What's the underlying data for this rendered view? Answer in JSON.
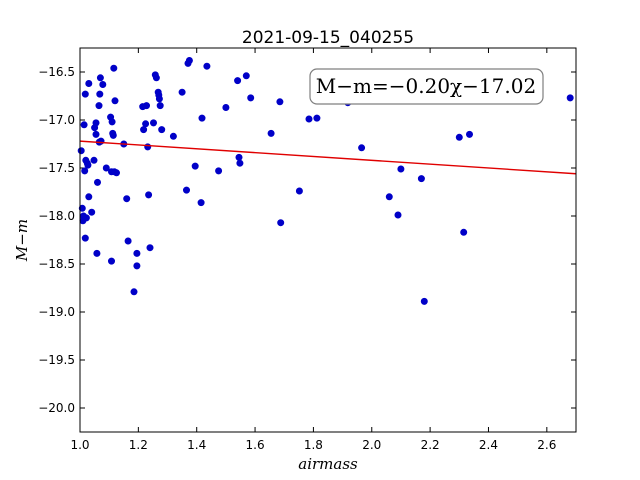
{
  "chart_data": {
    "type": "scatter",
    "title": "2021-09-15_040255",
    "xlabel": "airmass",
    "ylabel": "M−m",
    "xlim": [
      1.0,
      2.7
    ],
    "ylim": [
      -20.25,
      -16.25
    ],
    "y_inverted": true,
    "grid": false,
    "xticks": [
      1.0,
      1.2,
      1.4,
      1.6,
      1.8,
      2.0,
      2.2,
      2.4,
      2.6
    ],
    "xtick_labels": [
      "1.0",
      "1.2",
      "1.4",
      "1.6",
      "1.8",
      "2.0",
      "2.2",
      "2.4",
      "2.6"
    ],
    "yticks": [
      -16.5,
      -17.0,
      -17.5,
      -18.0,
      -18.5,
      -19.0,
      -19.5,
      -20.0
    ],
    "ytick_labels": [
      "−16.5",
      "−17.0",
      "−17.5",
      "−18.0",
      "−18.5",
      "−19.0",
      "−19.5",
      "−20.0"
    ],
    "annotation": "M−m=−0.20χ−17.02",
    "fit": {
      "slope": -0.2,
      "intercept": -17.02,
      "color": "#e00000"
    },
    "point_color": "#0000c8",
    "points": [
      [
        1.004,
        -17.32
      ],
      [
        1.008,
        -17.92
      ],
      [
        1.01,
        -18.05
      ],
      [
        1.012,
        -18.0
      ],
      [
        1.014,
        -17.05
      ],
      [
        1.016,
        -17.53
      ],
      [
        1.018,
        -18.23
      ],
      [
        1.018,
        -16.73
      ],
      [
        1.02,
        -17.42
      ],
      [
        1.022,
        -18.02
      ],
      [
        1.025,
        -17.45
      ],
      [
        1.027,
        -17.47
      ],
      [
        1.03,
        -16.62
      ],
      [
        1.03,
        -17.8
      ],
      [
        1.04,
        -17.96
      ],
      [
        1.048,
        -17.42
      ],
      [
        1.05,
        -17.08
      ],
      [
        1.055,
        -17.03
      ],
      [
        1.055,
        -17.15
      ],
      [
        1.058,
        -18.39
      ],
      [
        1.06,
        -17.65
      ],
      [
        1.065,
        -16.85
      ],
      [
        1.066,
        -17.23
      ],
      [
        1.068,
        -16.73
      ],
      [
        1.07,
        -16.56
      ],
      [
        1.072,
        -17.22
      ],
      [
        1.078,
        -16.63
      ],
      [
        1.09,
        -17.5
      ],
      [
        1.105,
        -16.97
      ],
      [
        1.108,
        -17.54
      ],
      [
        1.108,
        -18.47
      ],
      [
        1.11,
        -17.02
      ],
      [
        1.112,
        -17.14
      ],
      [
        1.114,
        -17.16
      ],
      [
        1.116,
        -16.46
      ],
      [
        1.118,
        -17.54
      ],
      [
        1.12,
        -16.8
      ],
      [
        1.125,
        -17.55
      ],
      [
        1.15,
        -17.25
      ],
      [
        1.16,
        -17.82
      ],
      [
        1.165,
        -18.26
      ],
      [
        1.185,
        -18.79
      ],
      [
        1.195,
        -18.52
      ],
      [
        1.195,
        -18.39
      ],
      [
        1.215,
        -16.86
      ],
      [
        1.218,
        -17.1
      ],
      [
        1.225,
        -17.04
      ],
      [
        1.228,
        -16.85
      ],
      [
        1.232,
        -17.28
      ],
      [
        1.235,
        -17.78
      ],
      [
        1.24,
        -18.33
      ],
      [
        1.252,
        -17.03
      ],
      [
        1.258,
        -16.53
      ],
      [
        1.262,
        -16.56
      ],
      [
        1.268,
        -16.71
      ],
      [
        1.27,
        -16.74
      ],
      [
        1.272,
        -16.78
      ],
      [
        1.275,
        -16.85
      ],
      [
        1.28,
        -17.1
      ],
      [
        1.32,
        -17.17
      ],
      [
        1.35,
        -16.71
      ],
      [
        1.365,
        -17.73
      ],
      [
        1.37,
        -16.41
      ],
      [
        1.375,
        -16.38
      ],
      [
        1.395,
        -17.48
      ],
      [
        1.415,
        -17.86
      ],
      [
        1.418,
        -16.98
      ],
      [
        1.435,
        -16.44
      ],
      [
        1.475,
        -17.53
      ],
      [
        1.5,
        -16.87
      ],
      [
        1.54,
        -16.59
      ],
      [
        1.545,
        -17.39
      ],
      [
        1.548,
        -17.45
      ],
      [
        1.57,
        -16.54
      ],
      [
        1.585,
        -16.77
      ],
      [
        1.655,
        -17.14
      ],
      [
        1.685,
        -16.81
      ],
      [
        1.688,
        -18.07
      ],
      [
        1.752,
        -17.74
      ],
      [
        1.785,
        -16.99
      ],
      [
        1.812,
        -16.98
      ],
      [
        1.918,
        -16.82
      ],
      [
        1.965,
        -17.29
      ],
      [
        2.06,
        -17.8
      ],
      [
        2.09,
        -17.99
      ],
      [
        2.1,
        -17.51
      ],
      [
        2.17,
        -17.61
      ],
      [
        2.18,
        -18.89
      ],
      [
        2.3,
        -17.18
      ],
      [
        2.315,
        -18.17
      ],
      [
        2.335,
        -17.15
      ],
      [
        2.68,
        -16.77
      ]
    ]
  }
}
